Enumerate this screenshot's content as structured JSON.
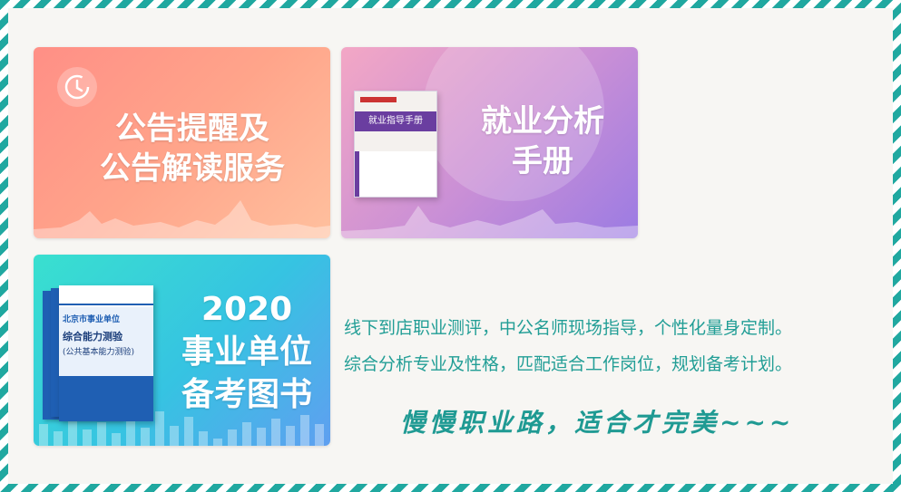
{
  "cards": {
    "bulletin": {
      "title_line1": "公告提醒及",
      "title_line2": "公告解读服务"
    },
    "employment": {
      "title_line1": "就业分析",
      "title_line2": "手册",
      "book_title": "就业指导手册"
    },
    "books": {
      "title_line1": "2020",
      "title_line2": "事业单位",
      "title_line3": "备考图书",
      "book_line1": "北京市事业单位",
      "book_line2": "综合能力测验",
      "book_line3": "(公共基本能力测验)"
    }
  },
  "description": {
    "line1": "线下到店职业测评，中公名师现场指导，个性化量身定制。",
    "line2": "综合分析专业及性格，匹配适合工作岗位，规划备考计划。"
  },
  "slogan": "慢慢职业路，适合才完美~~~",
  "colors": {
    "border": "#20a8a0",
    "text": "#229e96"
  }
}
